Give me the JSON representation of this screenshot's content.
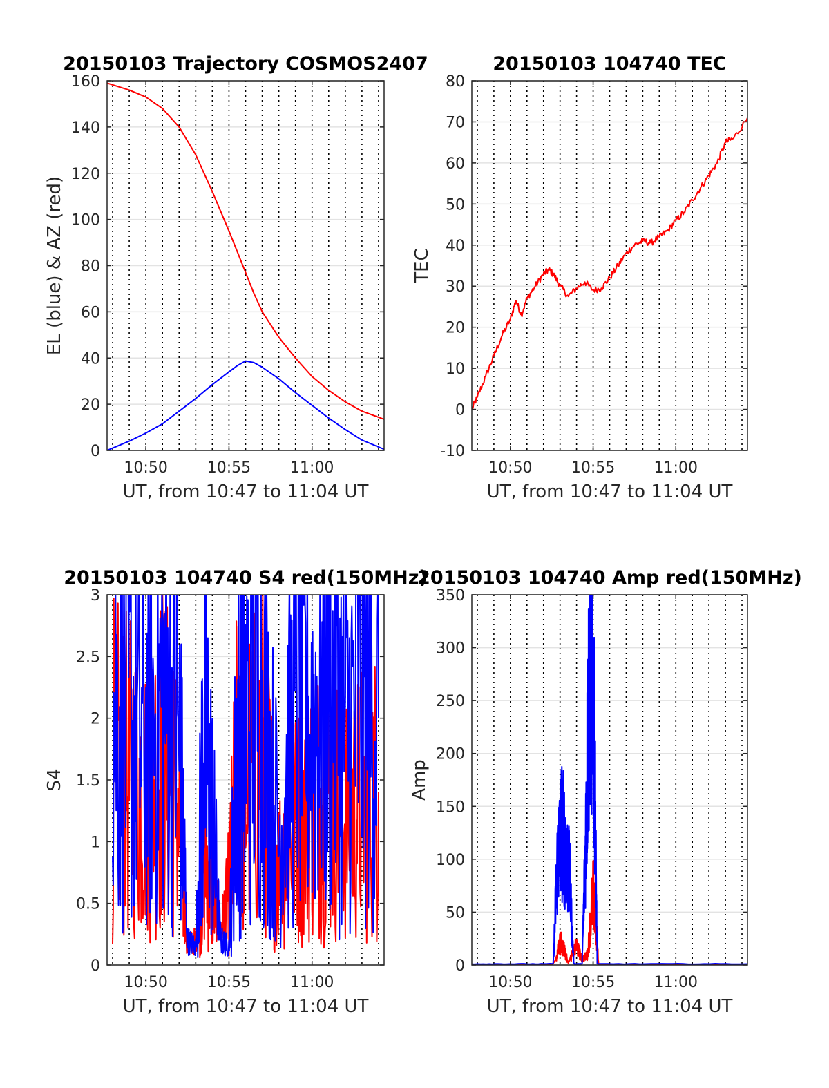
{
  "chart_data": [
    {
      "type": "line",
      "title": "20150103 Trajectory COSMOS2407",
      "xlabel": "UT, from 10:47 to 11:04 UT",
      "ylabel": "EL (blue) & AZ (red)",
      "xlim": [
        "10:47:40",
        "11:04:20"
      ],
      "ylim": [
        0,
        160
      ],
      "yticks": [
        0,
        20,
        40,
        60,
        80,
        100,
        120,
        140,
        160
      ],
      "xticks": [
        "10:50",
        "10:55",
        "11:00"
      ],
      "grid": "horizontal solid, vertical dotted every minute",
      "series": [
        {
          "color": "#ff0000",
          "x": [
            "10:47:40",
            "10:49",
            "10:50",
            "10:51",
            "10:52",
            "10:53",
            "10:54",
            "10:55",
            "10:55:30",
            "10:56",
            "10:56:30",
            "10:57",
            "10:58",
            "10:59",
            "11:00",
            "11:01",
            "11:02",
            "11:03",
            "11:04:20"
          ],
          "values": [
            159,
            156,
            153,
            148,
            140,
            128,
            112,
            95,
            86,
            77,
            68,
            60,
            49,
            40,
            32,
            26,
            21,
            17,
            13.5
          ]
        },
        {
          "color": "#0000ff",
          "x": [
            "10:47:40",
            "10:49",
            "10:50",
            "10:51",
            "10:52",
            "10:53",
            "10:54",
            "10:55",
            "10:55:30",
            "10:56",
            "10:56:30",
            "10:57",
            "10:58",
            "10:59",
            "11:00",
            "11:01",
            "11:02",
            "11:03",
            "11:04:20"
          ],
          "values": [
            0,
            4,
            7.5,
            11.5,
            17,
            22.5,
            28.5,
            34,
            36.7,
            38.7,
            38,
            36,
            31,
            25,
            19.5,
            14,
            9,
            4.5,
            0.5
          ]
        }
      ]
    },
    {
      "type": "line",
      "title": "20150103 104740 TEC",
      "xlabel": "UT, from 10:47 to 11:04 UT",
      "ylabel": "TEC",
      "xlim": [
        "10:47:40",
        "11:04:20"
      ],
      "ylim": [
        -10,
        80
      ],
      "yticks": [
        -10,
        0,
        10,
        20,
        30,
        40,
        50,
        60,
        70,
        80
      ],
      "xticks": [
        "10:50",
        "10:55",
        "11:00"
      ],
      "grid": "horizontal solid, vertical dotted every minute",
      "series": [
        {
          "color": "#ff0000",
          "x": [
            "10:47:40",
            "10:48",
            "10:48:30",
            "10:49",
            "10:49:30",
            "10:50",
            "10:50:20",
            "10:50:40",
            "10:51",
            "10:51:30",
            "10:52",
            "10:52:20",
            "10:52:40",
            "10:53",
            "10:53:30",
            "10:54",
            "10:54:30",
            "10:55",
            "10:55:30",
            "10:56",
            "10:56:30",
            "10:57",
            "10:57:30",
            "10:58",
            "10:58:30",
            "10:59",
            "10:59:30",
            "11:00",
            "11:00:30",
            "11:01",
            "11:01:30",
            "11:02",
            "11:02:30",
            "11:03",
            "11:03:30",
            "11:04:20"
          ],
          "values": [
            0,
            3,
            8,
            13,
            18,
            22,
            26.5,
            23,
            27,
            30,
            33,
            34,
            32.5,
            30,
            27.5,
            29.5,
            31,
            29,
            29.5,
            32,
            35,
            38,
            40,
            41,
            40.5,
            42,
            43.5,
            46,
            48,
            51,
            54,
            57,
            60,
            65,
            66,
            71
          ]
        }
      ]
    },
    {
      "type": "line",
      "title": "20150103 104740 S4 red(150MHz)",
      "xlabel": "UT, from 10:47 to 11:04 UT",
      "ylabel": "S4",
      "xlim": [
        "10:47:40",
        "11:04:20"
      ],
      "ylim": [
        0,
        3
      ],
      "yticks": [
        0,
        0.5,
        1,
        1.5,
        2,
        2.5,
        3
      ],
      "xticks": [
        "10:50",
        "10:55",
        "11:00"
      ],
      "grid": "horizontal solid, vertical dotted every minute",
      "series": [
        {
          "color": "#ff0000",
          "x": [
            "10:48",
            "10:49",
            "10:50",
            "10:51",
            "10:52",
            "10:52:30",
            "10:53",
            "10:53:30",
            "10:54",
            "10:54:30",
            "10:55",
            "10:55:30",
            "10:56",
            "10:57",
            "10:58",
            "10:59",
            "11:00",
            "11:01",
            "11:02",
            "11:03",
            "11:04"
          ],
          "values": [
            1.6,
            1.5,
            1.4,
            1.7,
            1.3,
            0.15,
            0.2,
            0.9,
            0.6,
            0.3,
            0.6,
            1.6,
            1.4,
            1.7,
            0.8,
            1.1,
            1.3,
            1.4,
            1.2,
            1.3,
            1.4
          ]
        },
        {
          "color": "#0000ff",
          "x": [
            "10:48",
            "10:49",
            "10:50",
            "10:51",
            "10:52",
            "10:52:30",
            "10:53",
            "10:53:30",
            "10:54",
            "10:54:30",
            "10:55",
            "10:55:30",
            "10:56",
            "10:57",
            "10:58",
            "10:59",
            "11:00",
            "11:01",
            "11:02",
            "11:03",
            "11:04"
          ],
          "values": [
            2.1,
            2.0,
            1.8,
            2.2,
            1.9,
            0.2,
            0.15,
            1.9,
            1.2,
            0.2,
            0.15,
            1.8,
            2.0,
            2.2,
            1.0,
            2.1,
            2.0,
            2.2,
            1.9,
            2.1,
            2.0
          ]
        }
      ]
    },
    {
      "type": "line",
      "title": "20150103 104740 Amp red(150MHz)",
      "xlabel": "UT, from 10:47 to 11:04 UT",
      "ylabel": "Amp",
      "xlim": [
        "10:47:40",
        "11:04:20"
      ],
      "ylim": [
        0,
        350
      ],
      "yticks": [
        0,
        50,
        100,
        150,
        200,
        250,
        300,
        350
      ],
      "xticks": [
        "10:50",
        "10:55",
        "11:00"
      ],
      "grid": "horizontal solid, vertical dotted every minute",
      "series": [
        {
          "color": "#ff0000",
          "x": [
            "10:47:40",
            "10:52:30",
            "10:52:45",
            "10:53",
            "10:53:15",
            "10:53:30",
            "10:54",
            "10:54:20",
            "10:54:40",
            "10:55",
            "10:55:10",
            "10:55:20",
            "11:04:20"
          ],
          "values": [
            0,
            0,
            5,
            22,
            15,
            2,
            18,
            5,
            10,
            68,
            40,
            0,
            0
          ]
        },
        {
          "color": "#0000ff",
          "x": [
            "10:47:40",
            "10:52:35",
            "10:52:50",
            "10:53:05",
            "10:53:20",
            "10:53:35",
            "10:53:50",
            "10:54:20",
            "10:54:35",
            "10:54:45",
            "10:54:55",
            "10:55:05",
            "10:55:15",
            "11:04:20"
          ],
          "values": [
            1,
            1,
            95,
            130,
            110,
            80,
            1,
            1,
            140,
            260,
            300,
            200,
            1,
            1
          ]
        }
      ]
    }
  ]
}
